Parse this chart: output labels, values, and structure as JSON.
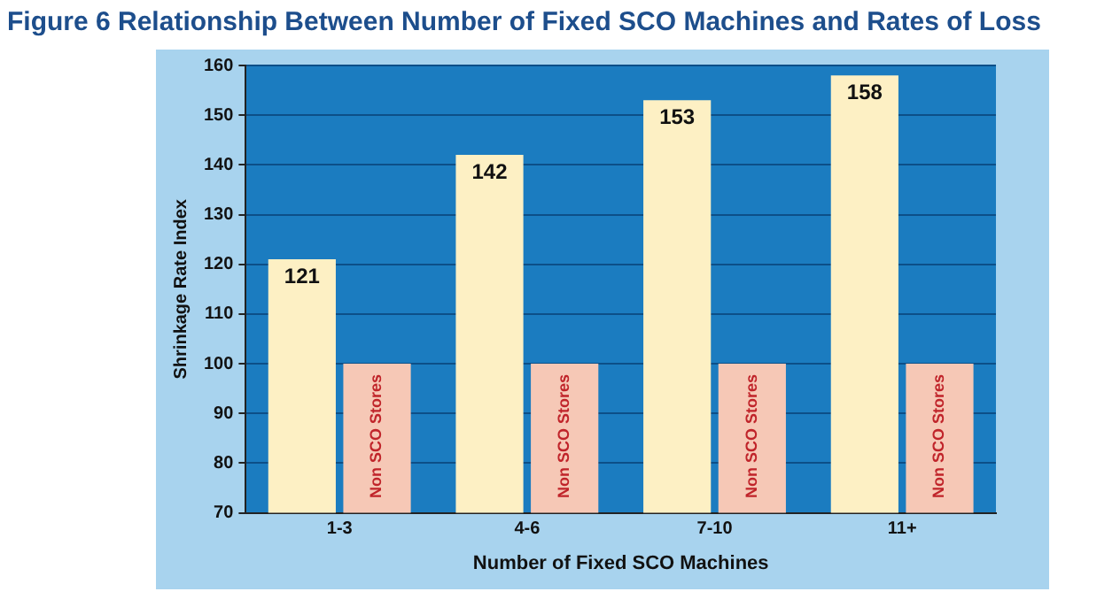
{
  "chart_data": {
    "type": "bar",
    "title": "Figure 6 Relationship Between Number of Fixed SCO Machines and Rates of Loss",
    "xlabel": "Number of Fixed SCO Machines",
    "ylabel": "Shrinkage Rate Index",
    "categories": [
      "1-3",
      "4-6",
      "7-10",
      "11+"
    ],
    "series": [
      {
        "color": "#fdf0c4",
        "values": [
          121,
          142,
          153,
          158
        ],
        "value_labels": [
          "121",
          "142",
          "153",
          "158"
        ]
      },
      {
        "name": "Non SCO Stores",
        "color": "#f6c8b6",
        "values": [
          100,
          100,
          100,
          100
        ]
      }
    ],
    "ylim": [
      70,
      160
    ],
    "yticks": [
      70,
      80,
      90,
      100,
      110,
      120,
      130,
      140,
      150,
      160
    ],
    "grid": "y",
    "legend": false
  }
}
